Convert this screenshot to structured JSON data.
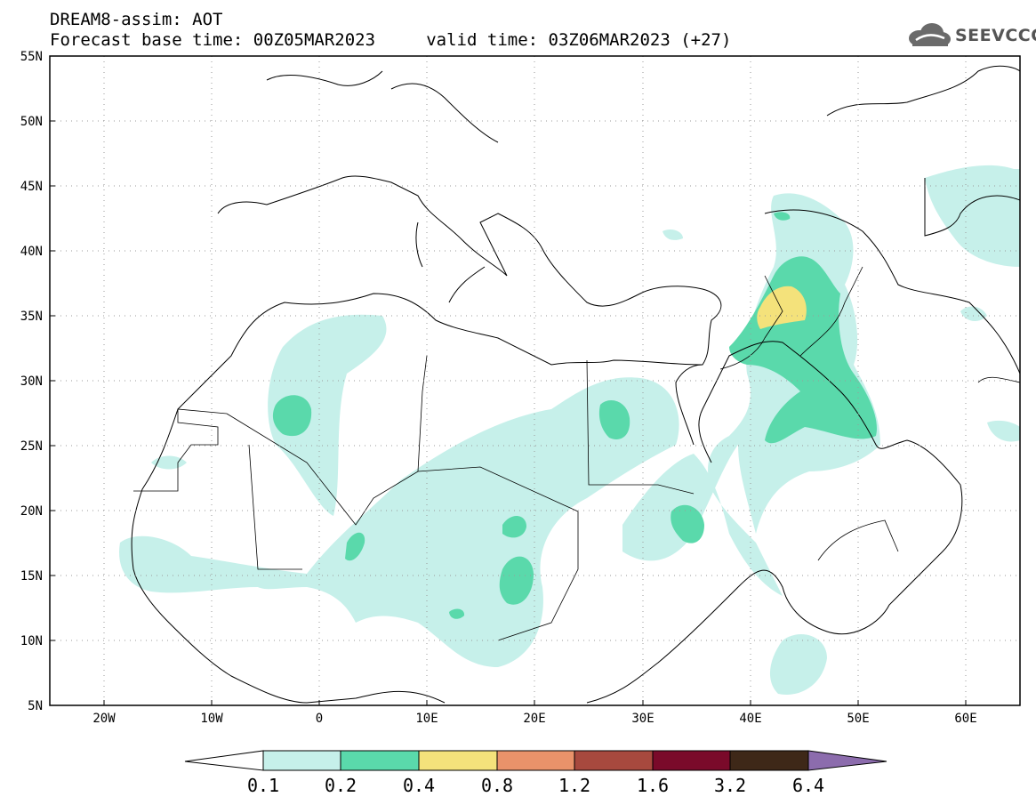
{
  "header": {
    "title_line1": "DREAM8-assim: AOT",
    "title_line2": "Forecast base time: 00Z05MAR2023     valid time: 03Z06MAR2023 (+27)",
    "logo_text": "SEEVCCC"
  },
  "map": {
    "lat_labels": [
      "55N",
      "50N",
      "45N",
      "40N",
      "35N",
      "30N",
      "25N",
      "20N",
      "15N",
      "10N",
      "5N"
    ],
    "lon_labels": [
      "20W",
      "10W",
      "0",
      "10E",
      "20E",
      "30E",
      "40E",
      "50E",
      "60E"
    ],
    "colors": {
      "land_border": "#000000",
      "grid": "#9a9a9a"
    }
  },
  "colorbar": {
    "labels": [
      "0.1",
      "0.2",
      "0.4",
      "0.8",
      "1.2",
      "1.6",
      "3.2",
      "6.4"
    ],
    "colors": [
      "#ffffff",
      "#c6f0ea",
      "#5ad9ab",
      "#f4e27b",
      "#e9926a",
      "#a7493e",
      "#7a0a2a",
      "#3e2818",
      "#8c6cad"
    ]
  }
}
